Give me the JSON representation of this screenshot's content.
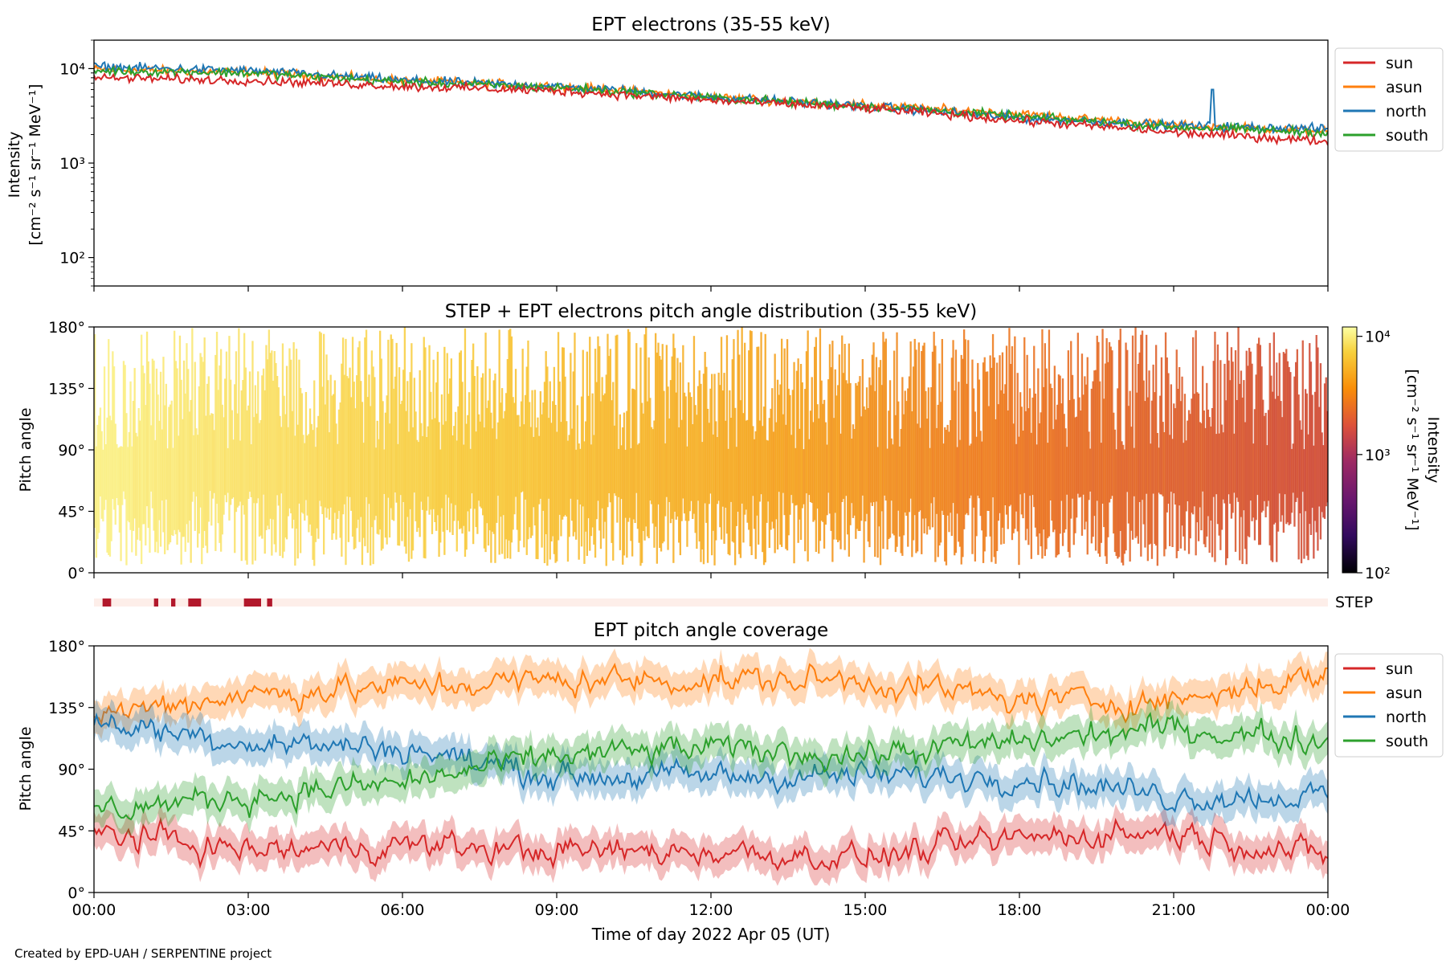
{
  "figure": {
    "credit": "Created by EPD-UAH / SERPENTINE project",
    "xlabel": "Time of day 2022 Apr 05 (UT)",
    "x_tick_labels": [
      "00:00",
      "03:00",
      "06:00",
      "09:00",
      "12:00",
      "15:00",
      "18:00",
      "21:00",
      "00:00"
    ]
  },
  "chart_data": [
    {
      "type": "line",
      "title": "EPT electrons (35-55 keV)",
      "ylabel_line1": "Intensity",
      "ylabel_line2": "[cm⁻² s⁻¹ sr⁻¹ MeV⁻¹]",
      "yscale": "log",
      "ylim": [
        50,
        20000
      ],
      "y_ticks": [
        100,
        1000,
        10000
      ],
      "y_tick_labels": [
        "10²",
        "10³",
        "10⁴"
      ],
      "x": [
        "00:00",
        "03:00",
        "06:00",
        "09:00",
        "12:00",
        "15:00",
        "18:00",
        "21:00",
        "24:00"
      ],
      "xlim": [
        "00:00",
        "24:00"
      ],
      "legend_position": "outside-right-top",
      "series": [
        {
          "name": "sun",
          "color": "#d62728",
          "values": [
            8000,
            7500,
            6500,
            5800,
            4600,
            3800,
            2800,
            2100,
            1700
          ]
        },
        {
          "name": "asun",
          "color": "#ff7f0e",
          "values": [
            9800,
            9200,
            7500,
            6500,
            5000,
            4100,
            3300,
            2500,
            2200
          ]
        },
        {
          "name": "north",
          "color": "#1f77b4",
          "values": [
            10500,
            9500,
            7500,
            6500,
            5000,
            4000,
            3000,
            2500,
            2300
          ]
        },
        {
          "name": "south",
          "color": "#2ca02c",
          "values": [
            9500,
            9000,
            7200,
            6300,
            4900,
            4000,
            3100,
            2400,
            2100
          ]
        }
      ],
      "annotations": [
        {
          "type": "spike",
          "series": "north",
          "x": "21:45",
          "y": 6000
        }
      ]
    },
    {
      "type": "heatmap",
      "title": "STEP + EPT electrons pitch angle distribution (35-55 keV)",
      "ylabel": "Pitch angle",
      "ylim": [
        0,
        180
      ],
      "y_tick_labels": [
        "0°",
        "45°",
        "90°",
        "135°",
        "180°"
      ],
      "y_ticks": [
        0,
        45,
        90,
        135,
        180
      ],
      "x": [
        "00:00",
        "03:00",
        "06:00",
        "09:00",
        "12:00",
        "15:00",
        "18:00",
        "21:00",
        "24:00"
      ],
      "xlim": [
        "00:00",
        "24:00"
      ],
      "colormap": "inferno",
      "colorbar": {
        "label_line1": "Intensity",
        "label_line2": "[cm⁻² s⁻¹ sr⁻¹ MeV⁻¹]",
        "scale": "log",
        "range": [
          100,
          12000
        ],
        "tick_labels": [
          "10²",
          "10³",
          "10⁴"
        ],
        "ticks": [
          100,
          1000,
          10000
        ]
      }
    },
    {
      "type": "bar",
      "label": "STEP",
      "background_color": "#fdeee9",
      "bar_color": "#b2182b",
      "intervals": [
        [
          "00:10",
          "00:20"
        ],
        [
          "01:10",
          "01:15"
        ],
        [
          "01:30",
          "01:35"
        ],
        [
          "01:50",
          "02:05"
        ],
        [
          "02:55",
          "03:15"
        ],
        [
          "03:22",
          "03:28"
        ]
      ]
    },
    {
      "type": "line",
      "title": "EPT pitch angle coverage",
      "ylabel": "Pitch angle",
      "ylim": [
        0,
        180
      ],
      "y_tick_labels": [
        "0°",
        "45°",
        "90°",
        "135°",
        "180°"
      ],
      "y_ticks": [
        0,
        45,
        90,
        135,
        180
      ],
      "x": [
        "00:00",
        "03:00",
        "06:00",
        "09:00",
        "12:00",
        "15:00",
        "18:00",
        "21:00",
        "24:00"
      ],
      "xlim": [
        "00:00",
        "24:00"
      ],
      "legend_position": "outside-right-top",
      "series": [
        {
          "name": "sun",
          "color": "#d62728",
          "values": [
            45,
            30,
            35,
            30,
            30,
            25,
            40,
            45,
            25
          ]
        },
        {
          "name": "asun",
          "color": "#ff7f0e",
          "values": [
            130,
            145,
            150,
            155,
            155,
            155,
            140,
            140,
            160
          ]
        },
        {
          "name": "north",
          "color": "#1f77b4",
          "values": [
            125,
            110,
            105,
            85,
            85,
            85,
            85,
            70,
            70
          ]
        },
        {
          "name": "south",
          "color": "#2ca02c",
          "values": [
            60,
            70,
            80,
            100,
            105,
            100,
            110,
            120,
            110
          ]
        }
      ]
    }
  ]
}
